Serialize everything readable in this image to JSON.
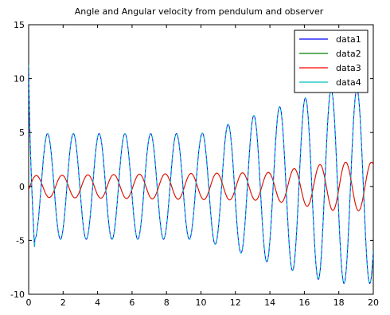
{
  "chart_data": {
    "type": "line",
    "title": "Angle and Angular velocity from pendulum and observer",
    "xlabel": "",
    "ylabel": "",
    "xlim": [
      0,
      20
    ],
    "ylim": [
      -10,
      15
    ],
    "xticks": [
      0,
      2,
      4,
      6,
      8,
      10,
      12,
      14,
      16,
      18,
      20
    ],
    "yticks": [
      -10,
      -5,
      0,
      5,
      10,
      15
    ],
    "grid": false,
    "legend_position": "top-right",
    "model": {
      "note_sampling_step": 0.02,
      "angle": {
        "omega": 4.2,
        "base_amp": 1.0,
        "growth_start_time": 14,
        "peak_amp": 2.25,
        "phase": -0.3
      },
      "velocity": {
        "omega": 4.2,
        "base_amp": 4.9,
        "dip": -5.9,
        "growth_start_time": 10,
        "peak_amp": 9.0,
        "phase": 1.1,
        "initial_spike": 11.3
      }
    },
    "series": [
      {
        "name": "data1",
        "color": "#0000ff",
        "kind": "velocity",
        "linewidth": 1.0,
        "dash": ""
      },
      {
        "name": "data2",
        "color": "#008000",
        "kind": "angle",
        "linewidth": 1.0,
        "dash": ""
      },
      {
        "name": "data3",
        "color": "#ff0000",
        "kind": "angle",
        "linewidth": 1.0,
        "dash": ""
      },
      {
        "name": "data4",
        "color": "#00bfbf",
        "kind": "velocity",
        "linewidth": 1.2,
        "dash": "4,3"
      }
    ]
  }
}
